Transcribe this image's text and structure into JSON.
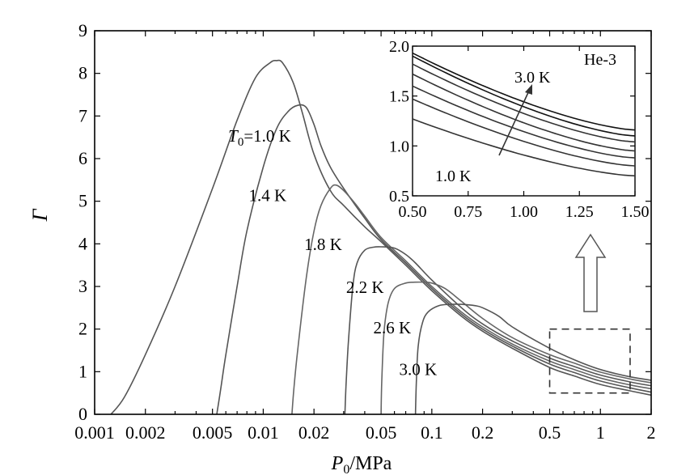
{
  "chart_data": {
    "type": "line",
    "xlabel": "P0/MPa",
    "xlabel_main": "P",
    "xlabel_sub": "0",
    "xlabel_unit": "/MPa",
    "ylabel": "Γ",
    "xscale": "log",
    "xlim": [
      0.001,
      2
    ],
    "ylim": [
      0,
      9
    ],
    "x_ticks": [
      0.001,
      0.002,
      0.005,
      0.01,
      0.02,
      0.05,
      0.1,
      0.2,
      0.5,
      1,
      2
    ],
    "x_tick_labels": [
      "0.001",
      "0.002",
      "0.005",
      "0.01",
      "0.02",
      "0.05",
      "0.1",
      "0.2",
      "0.5",
      "1",
      "2"
    ],
    "y_ticks": [
      0,
      1,
      2,
      3,
      4,
      5,
      6,
      7,
      8,
      9
    ],
    "y_tick_labels": [
      "0",
      "1",
      "2",
      "3",
      "4",
      "5",
      "6",
      "7",
      "8",
      "9"
    ],
    "series": [
      {
        "name": "T0=1.0 K",
        "color": "#555555",
        "x": [
          0.00125,
          0.0015,
          0.002,
          0.003,
          0.005,
          0.007,
          0.009,
          0.011,
          0.012,
          0.013,
          0.015,
          0.017,
          0.02,
          0.025,
          0.03,
          0.04,
          0.05,
          0.07,
          0.1,
          0.15,
          0.2,
          0.3,
          0.5,
          0.7,
          1.0,
          1.5,
          2.0
        ],
        "y": [
          0,
          0.4,
          1.4,
          3.0,
          5.3,
          6.9,
          7.9,
          8.25,
          8.3,
          8.25,
          7.8,
          7.1,
          6.1,
          5.25,
          4.9,
          4.4,
          4.05,
          3.5,
          2.9,
          2.3,
          1.95,
          1.55,
          1.1,
          0.9,
          0.7,
          0.55,
          0.45
        ]
      },
      {
        "name": "1.4 K",
        "color": "#555555",
        "x": [
          0.0053,
          0.0056,
          0.006,
          0.007,
          0.008,
          0.01,
          0.012,
          0.014,
          0.016,
          0.018,
          0.02,
          0.022,
          0.025,
          0.03,
          0.04,
          0.05,
          0.07,
          0.1,
          0.15,
          0.2,
          0.3,
          0.5,
          0.7,
          1.0,
          1.5,
          2.0
        ],
        "y": [
          0,
          0.6,
          1.4,
          3.0,
          4.3,
          5.8,
          6.7,
          7.1,
          7.25,
          7.2,
          6.8,
          6.3,
          5.8,
          5.3,
          4.6,
          4.1,
          3.55,
          2.95,
          2.35,
          2.0,
          1.6,
          1.18,
          0.98,
          0.78,
          0.62,
          0.52
        ]
      },
      {
        "name": "1.8 K",
        "color": "#666666",
        "x": [
          0.0148,
          0.0152,
          0.016,
          0.018,
          0.02,
          0.022,
          0.025,
          0.027,
          0.03,
          0.035,
          0.04,
          0.05,
          0.07,
          0.1,
          0.15,
          0.2,
          0.3,
          0.5,
          0.7,
          1.0,
          1.5,
          2.0
        ],
        "y": [
          0,
          0.6,
          1.5,
          3.2,
          4.3,
          4.9,
          5.3,
          5.38,
          5.25,
          4.95,
          4.65,
          4.15,
          3.6,
          3.0,
          2.4,
          2.05,
          1.65,
          1.25,
          1.05,
          0.85,
          0.69,
          0.6
        ]
      },
      {
        "name": "2.2 K",
        "color": "#555555",
        "x": [
          0.0305,
          0.031,
          0.032,
          0.034,
          0.036,
          0.04,
          0.045,
          0.05,
          0.06,
          0.07,
          0.08,
          0.1,
          0.15,
          0.2,
          0.3,
          0.5,
          0.7,
          1.0,
          1.5,
          2.0
        ],
        "y": [
          0,
          0.7,
          1.7,
          3.0,
          3.55,
          3.85,
          3.92,
          3.93,
          3.9,
          3.75,
          3.55,
          3.15,
          2.5,
          2.12,
          1.72,
          1.32,
          1.12,
          0.92,
          0.76,
          0.67
        ]
      },
      {
        "name": "2.6 K",
        "color": "#666666",
        "x": [
          0.05,
          0.0505,
          0.052,
          0.055,
          0.06,
          0.07,
          0.08,
          0.09,
          0.1,
          0.12,
          0.15,
          0.2,
          0.3,
          0.5,
          0.7,
          1.0,
          1.5,
          2.0
        ],
        "y": [
          0,
          0.8,
          1.9,
          2.6,
          2.95,
          3.08,
          3.1,
          3.1,
          3.08,
          2.95,
          2.65,
          2.25,
          1.8,
          1.4,
          1.2,
          0.99,
          0.83,
          0.74
        ]
      },
      {
        "name": "3.0 K",
        "color": "#555555",
        "x": [
          0.08,
          0.081,
          0.083,
          0.088,
          0.095,
          0.11,
          0.13,
          0.15,
          0.18,
          0.2,
          0.25,
          0.3,
          0.5,
          0.7,
          1.0,
          1.5,
          2.0
        ],
        "y": [
          0,
          0.8,
          1.6,
          2.15,
          2.4,
          2.55,
          2.58,
          2.58,
          2.55,
          2.5,
          2.3,
          2.05,
          1.55,
          1.28,
          1.05,
          0.88,
          0.8
        ]
      }
    ],
    "labels": [
      {
        "series": "T0=1.0 K",
        "text_main": "T",
        "text_sub": "0",
        "text_rest": "=1.0 K",
        "x": 0.0062,
        "y": 6.4
      },
      {
        "series": "1.4 K",
        "text": "1.4 K",
        "x": 0.0082,
        "y": 5.0
      },
      {
        "series": "1.8 K",
        "text": "1.8 K",
        "x": 0.0175,
        "y": 3.85
      },
      {
        "series": "2.2 K",
        "text": "2.2 K",
        "x": 0.031,
        "y": 2.85
      },
      {
        "series": "2.6 K",
        "text": "2.6 K",
        "x": 0.045,
        "y": 1.9
      },
      {
        "series": "3.0 K",
        "text": "3.0 K",
        "x": 0.064,
        "y": 0.92
      }
    ],
    "zoom_box": {
      "xlim": [
        0.5,
        1.5
      ],
      "ylim": [
        0.5,
        2.0
      ],
      "style": "dashed"
    },
    "arrow": "up",
    "inset": {
      "title": "He-3",
      "xlim": [
        0.5,
        1.5
      ],
      "ylim": [
        0.5,
        2.0
      ],
      "x_ticks": [
        0.5,
        0.75,
        1.0,
        1.25,
        1.5
      ],
      "x_tick_labels": [
        "0.50",
        "0.75",
        "1.00",
        "1.25",
        "1.50"
      ],
      "y_ticks": [
        0.5,
        1.0,
        1.5,
        2.0
      ],
      "y_tick_labels": [
        "0.5",
        "1.0",
        "1.5",
        "2.0"
      ],
      "low_label": "1.0 K",
      "high_label": "3.0 K",
      "series": [
        {
          "name": "1.0 K",
          "y_at_050": 1.27,
          "y_at_150": 0.7
        },
        {
          "name": "1.4 K",
          "y_at_050": 1.47,
          "y_at_150": 0.8
        },
        {
          "name": "1.8 K",
          "y_at_050": 1.6,
          "y_at_150": 0.88
        },
        {
          "name": "2.2 K",
          "y_at_050": 1.72,
          "y_at_150": 0.95
        },
        {
          "name": "2.6 K",
          "y_at_050": 1.82,
          "y_at_150": 1.04
        },
        {
          "name": "3.0 K",
          "y_at_050": 1.9,
          "y_at_150": 1.1
        },
        {
          "name": "",
          "y_at_050": 1.93,
          "y_at_150": 1.16
        }
      ]
    }
  }
}
